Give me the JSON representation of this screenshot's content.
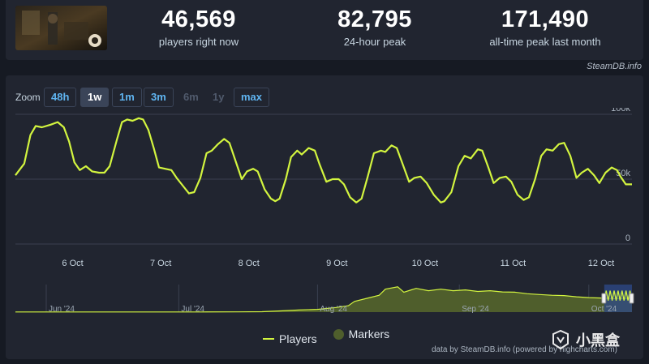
{
  "stats": [
    {
      "value": "46,569",
      "label": "players right now"
    },
    {
      "value": "82,795",
      "label": "24-hour peak"
    },
    {
      "value": "171,490",
      "label": "all-time peak last month"
    }
  ],
  "credit_top": "SteamDB.info",
  "zoom": {
    "label": "Zoom",
    "buttons": [
      {
        "label": "48h",
        "state": "normal"
      },
      {
        "label": "1w",
        "state": "active"
      },
      {
        "label": "1m",
        "state": "normal"
      },
      {
        "label": "3m",
        "state": "normal"
      },
      {
        "label": "6m",
        "state": "disabled"
      },
      {
        "label": "1y",
        "state": "disabled"
      },
      {
        "label": "max",
        "state": "normal"
      }
    ]
  },
  "legend": {
    "players": "Players",
    "markers": "Markers"
  },
  "credit_bottom": "data by SteamDB.info (powered by highcharts.com)",
  "watermark": "小黑盒",
  "colors": {
    "line": "#d3f53f",
    "grid": "#3a4050",
    "navigator_fill": "#4f5e2c",
    "navigator_select": "#2d4a8a"
  },
  "chart_data": {
    "type": "line",
    "x_unit": "date (October 2024)",
    "x_ticks": [
      {
        "label": "6 Oct",
        "t": 6.0
      },
      {
        "label": "7 Oct",
        "t": 7.0
      },
      {
        "label": "8 Oct",
        "t": 8.0
      },
      {
        "label": "9 Oct",
        "t": 9.0
      },
      {
        "label": "10 Oct",
        "t": 10.0
      },
      {
        "label": "11 Oct",
        "t": 11.0
      },
      {
        "label": "12 Oct",
        "t": 12.0
      }
    ],
    "x_range": [
      5.35,
      12.35
    ],
    "ylim": [
      0,
      100000
    ],
    "y_ticks": [
      {
        "label": "0",
        "v": 0
      },
      {
        "label": "50k",
        "v": 50000
      },
      {
        "label": "100k",
        "v": 100000
      }
    ],
    "series": [
      {
        "name": "Players",
        "points": [
          [
            5.35,
            53000
          ],
          [
            5.45,
            62000
          ],
          [
            5.52,
            84000
          ],
          [
            5.58,
            91000
          ],
          [
            5.65,
            90000
          ],
          [
            5.75,
            92000
          ],
          [
            5.83,
            94000
          ],
          [
            5.9,
            90000
          ],
          [
            5.96,
            79000
          ],
          [
            6.02,
            63000
          ],
          [
            6.08,
            57000
          ],
          [
            6.15,
            60000
          ],
          [
            6.22,
            56000
          ],
          [
            6.3,
            55000
          ],
          [
            6.36,
            55000
          ],
          [
            6.42,
            60000
          ],
          [
            6.5,
            80000
          ],
          [
            6.56,
            94000
          ],
          [
            6.62,
            96000
          ],
          [
            6.68,
            95000
          ],
          [
            6.75,
            97000
          ],
          [
            6.8,
            96000
          ],
          [
            6.86,
            88000
          ],
          [
            6.92,
            74000
          ],
          [
            6.98,
            59000
          ],
          [
            7.05,
            58000
          ],
          [
            7.12,
            57000
          ],
          [
            7.18,
            51000
          ],
          [
            7.25,
            45000
          ],
          [
            7.32,
            39000
          ],
          [
            7.38,
            40000
          ],
          [
            7.45,
            51000
          ],
          [
            7.52,
            70000
          ],
          [
            7.58,
            72000
          ],
          [
            7.65,
            77000
          ],
          [
            7.72,
            81000
          ],
          [
            7.78,
            78000
          ],
          [
            7.85,
            64000
          ],
          [
            7.92,
            50000
          ],
          [
            7.98,
            56000
          ],
          [
            8.05,
            58000
          ],
          [
            8.1,
            56000
          ],
          [
            8.18,
            42000
          ],
          [
            8.25,
            35000
          ],
          [
            8.3,
            33000
          ],
          [
            8.35,
            35000
          ],
          [
            8.42,
            50000
          ],
          [
            8.48,
            67000
          ],
          [
            8.55,
            72000
          ],
          [
            8.6,
            69000
          ],
          [
            8.68,
            74000
          ],
          [
            8.75,
            72000
          ],
          [
            8.8,
            62000
          ],
          [
            8.88,
            48000
          ],
          [
            8.95,
            50000
          ],
          [
            9.02,
            50000
          ],
          [
            9.08,
            46000
          ],
          [
            9.15,
            36000
          ],
          [
            9.22,
            32000
          ],
          [
            9.28,
            35000
          ],
          [
            9.35,
            52000
          ],
          [
            9.42,
            70000
          ],
          [
            9.5,
            72000
          ],
          [
            9.55,
            71000
          ],
          [
            9.62,
            76000
          ],
          [
            9.68,
            74000
          ],
          [
            9.75,
            61000
          ],
          [
            9.82,
            48000
          ],
          [
            9.88,
            51000
          ],
          [
            9.95,
            52000
          ],
          [
            10.02,
            47000
          ],
          [
            10.1,
            38000
          ],
          [
            10.18,
            32000
          ],
          [
            10.22,
            33000
          ],
          [
            10.3,
            40000
          ],
          [
            10.38,
            60000
          ],
          [
            10.45,
            68000
          ],
          [
            10.52,
            66000
          ],
          [
            10.6,
            73000
          ],
          [
            10.65,
            72000
          ],
          [
            10.72,
            59000
          ],
          [
            10.78,
            47000
          ],
          [
            10.85,
            51000
          ],
          [
            10.92,
            52000
          ],
          [
            10.98,
            48000
          ],
          [
            11.05,
            38000
          ],
          [
            11.12,
            34000
          ],
          [
            11.18,
            36000
          ],
          [
            11.25,
            50000
          ],
          [
            11.32,
            68000
          ],
          [
            11.38,
            73000
          ],
          [
            11.45,
            72000
          ],
          [
            11.52,
            77000
          ],
          [
            11.58,
            78000
          ],
          [
            11.65,
            68000
          ],
          [
            11.72,
            51000
          ],
          [
            11.78,
            55000
          ],
          [
            11.85,
            58000
          ],
          [
            11.92,
            53000
          ],
          [
            11.98,
            47000
          ],
          [
            12.05,
            55000
          ],
          [
            12.12,
            59000
          ],
          [
            12.18,
            57000
          ],
          [
            12.22,
            52000
          ],
          [
            12.28,
            46000
          ],
          [
            12.35,
            46000
          ]
        ]
      }
    ],
    "navigator": {
      "x_labels": [
        "Jun '24",
        "Jul '24",
        "Aug '24",
        "Sep '24",
        "Oct '24"
      ],
      "ylim": [
        0,
        180000
      ],
      "points": [
        [
          0,
          1000
        ],
        [
          0.06,
          1200
        ],
        [
          0.12,
          1000
        ],
        [
          0.18,
          1100
        ],
        [
          0.24,
          1300
        ],
        [
          0.3,
          1200
        ],
        [
          0.36,
          1500
        ],
        [
          0.4,
          2500
        ],
        [
          0.43,
          8000
        ],
        [
          0.46,
          14000
        ],
        [
          0.49,
          18000
        ],
        [
          0.52,
          30000
        ],
        [
          0.54,
          42000
        ],
        [
          0.55,
          70000
        ],
        [
          0.57,
          90000
        ],
        [
          0.59,
          110000
        ],
        [
          0.6,
          150000
        ],
        [
          0.62,
          165000
        ],
        [
          0.63,
          130000
        ],
        [
          0.65,
          155000
        ],
        [
          0.67,
          140000
        ],
        [
          0.69,
          150000
        ],
        [
          0.71,
          140000
        ],
        [
          0.73,
          145000
        ],
        [
          0.75,
          135000
        ],
        [
          0.77,
          140000
        ],
        [
          0.79,
          132000
        ],
        [
          0.81,
          130000
        ],
        [
          0.83,
          120000
        ],
        [
          0.85,
          115000
        ],
        [
          0.87,
          110000
        ],
        [
          0.89,
          108000
        ],
        [
          0.91,
          100000
        ],
        [
          0.93,
          95000
        ],
        [
          0.95,
          92000
        ],
        [
          0.97,
          88000
        ],
        [
          1.0,
          90000
        ]
      ],
      "window": [
        0.955,
        1.0
      ]
    }
  }
}
